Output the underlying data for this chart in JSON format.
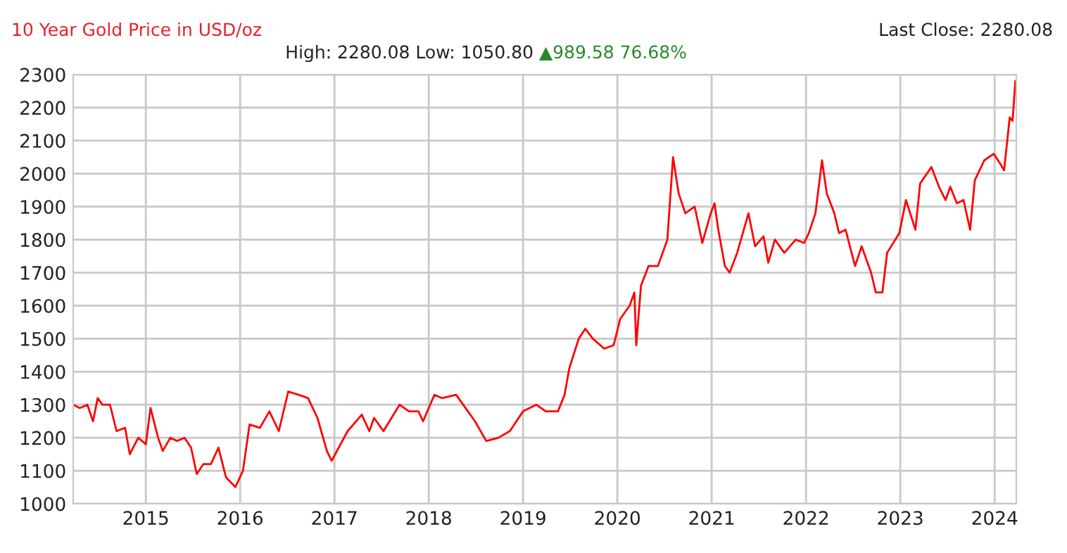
{
  "chart_data": {
    "type": "line",
    "title": "10 Year Gold Price in USD/oz",
    "subtitle": "High: 2280.08 Low: 1050.80",
    "annotations": [
      "▲989.58 76.68%",
      "Last Close: 2280.08"
    ],
    "x": [
      2014.23,
      2014.3,
      2014.38,
      2014.44,
      2014.49,
      2014.54,
      2014.62,
      2014.69,
      2014.78,
      2014.83,
      2014.92,
      2015.0,
      2015.05,
      2015.13,
      2015.18,
      2015.26,
      2015.33,
      2015.41,
      2015.48,
      2015.54,
      2015.61,
      2015.69,
      2015.77,
      2015.85,
      2015.95,
      2016.03,
      2016.1,
      2016.21,
      2016.31,
      2016.41,
      2016.51,
      2016.62,
      2016.72,
      2016.82,
      2016.92,
      2016.97,
      2017.14,
      2017.29,
      2017.37,
      2017.42,
      2017.52,
      2017.69,
      2017.79,
      2017.89,
      2017.94,
      2018.06,
      2018.14,
      2018.29,
      2018.39,
      2018.49,
      2018.61,
      2018.74,
      2018.86,
      2019.0,
      2019.14,
      2019.24,
      2019.37,
      2019.44,
      2019.49,
      2019.59,
      2019.66,
      2019.74,
      2019.86,
      2019.96,
      2020.03,
      2020.13,
      2020.18,
      2020.2,
      2020.25,
      2020.33,
      2020.43,
      2020.53,
      2020.59,
      2020.65,
      2020.72,
      2020.82,
      2020.9,
      2020.99,
      2021.03,
      2021.07,
      2021.14,
      2021.19,
      2021.27,
      2021.39,
      2021.46,
      2021.55,
      2021.6,
      2021.67,
      2021.77,
      2021.89,
      2021.98,
      2022.03,
      2022.1,
      2022.17,
      2022.22,
      2022.3,
      2022.35,
      2022.42,
      2022.52,
      2022.59,
      2022.69,
      2022.74,
      2022.81,
      2022.86,
      2022.99,
      2023.06,
      2023.16,
      2023.21,
      2023.33,
      2023.41,
      2023.48,
      2023.53,
      2023.6,
      2023.67,
      2023.74,
      2023.79,
      2023.89,
      2023.99,
      2024.06,
      2024.1,
      2024.16,
      2024.19,
      2024.22
    ],
    "series": [
      {
        "color": "#ff0000",
        "values": [
          1300,
          1290,
          1300,
          1250,
          1320,
          1300,
          1300,
          1220,
          1230,
          1150,
          1200,
          1180,
          1290,
          1200,
          1160,
          1200,
          1190,
          1200,
          1170,
          1090,
          1120,
          1120,
          1170,
          1080,
          1050.8,
          1100,
          1240,
          1230,
          1280,
          1220,
          1340,
          1330,
          1320,
          1260,
          1160,
          1130,
          1220,
          1270,
          1220,
          1260,
          1220,
          1300,
          1280,
          1280,
          1250,
          1330,
          1320,
          1330,
          1290,
          1250,
          1190,
          1200,
          1220,
          1280,
          1300,
          1280,
          1280,
          1330,
          1410,
          1500,
          1530,
          1500,
          1470,
          1480,
          1560,
          1600,
          1640,
          1480,
          1660,
          1720,
          1720,
          1800,
          2050,
          1940,
          1880,
          1900,
          1790,
          1880,
          1910,
          1830,
          1720,
          1700,
          1760,
          1880,
          1780,
          1810,
          1730,
          1800,
          1760,
          1800,
          1790,
          1820,
          1880,
          2040,
          1940,
          1880,
          1820,
          1830,
          1720,
          1780,
          1700,
          1640,
          1640,
          1760,
          1820,
          1920,
          1830,
          1970,
          2020,
          1960,
          1920,
          1960,
          1910,
          1920,
          1830,
          1980,
          2040,
          2060,
          2030,
          2010,
          2170,
          2160,
          2280.08
        ]
      }
    ],
    "xlim": [
      2014.23,
      2024.23
    ],
    "xticks": [
      2015,
      2016,
      2017,
      2018,
      2019,
      2020,
      2021,
      2022,
      2023,
      2024
    ],
    "ylim": [
      1000,
      2300
    ],
    "yticks": [
      1000,
      1100,
      1200,
      1300,
      1400,
      1500,
      1600,
      1700,
      1800,
      1900,
      2000,
      2100,
      2200,
      2300
    ],
    "grid": true,
    "legend": false,
    "marker": "none",
    "line_style": "solid"
  }
}
